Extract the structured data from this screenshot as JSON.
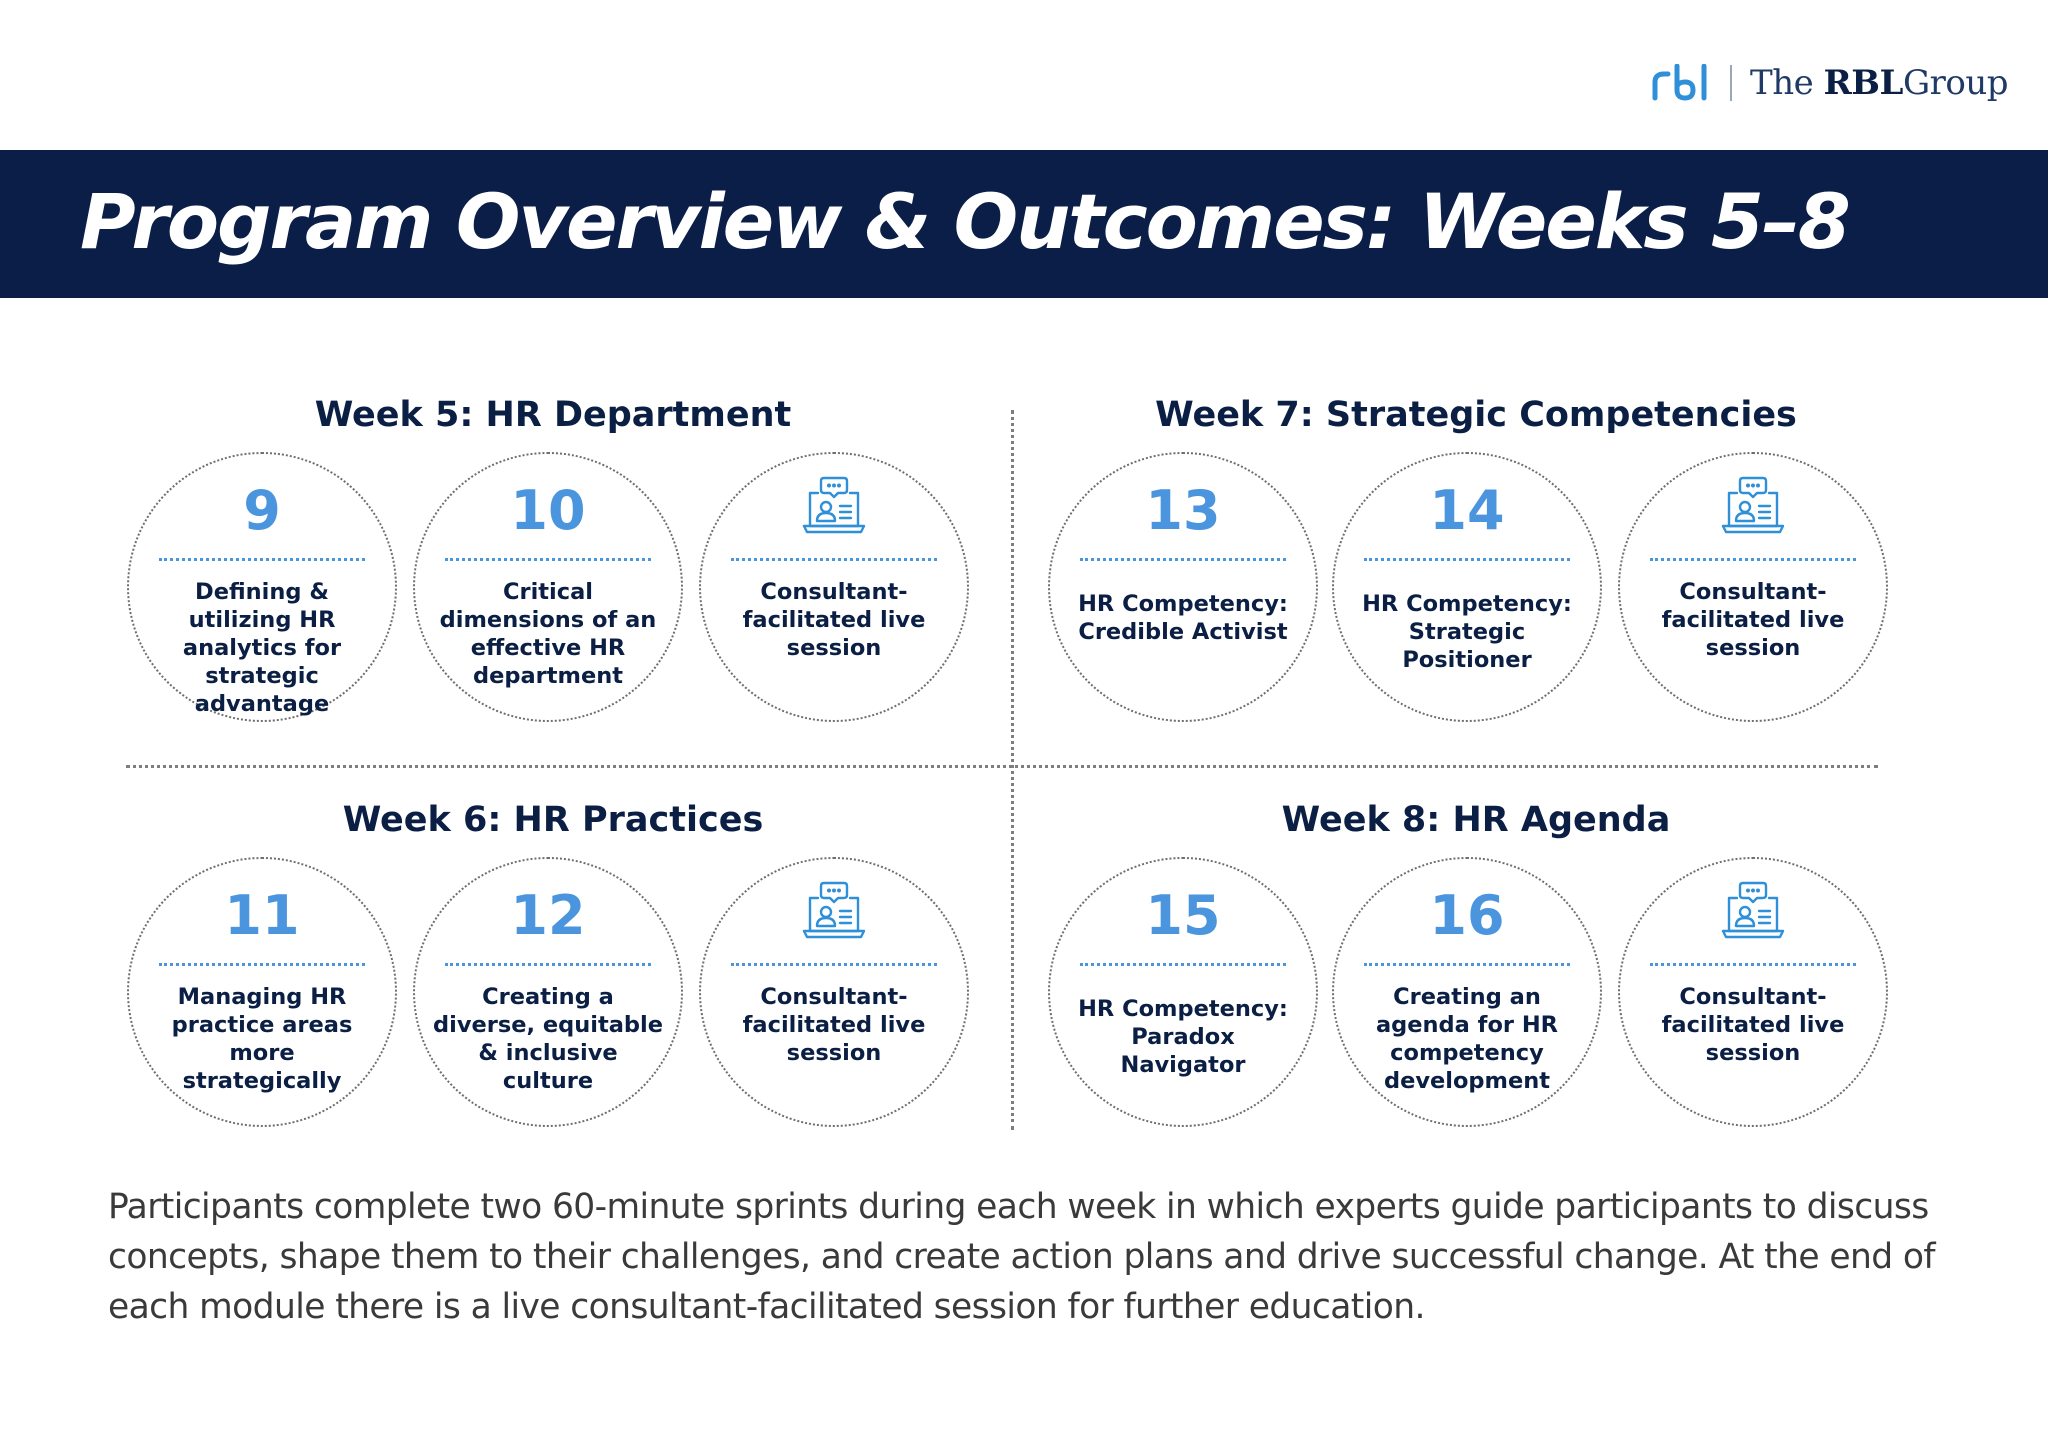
{
  "logo": {
    "mark": "rbl",
    "text_prefix": "The",
    "text_bold": "RBL",
    "text_suffix": "Group",
    "color": "#2f8fd8"
  },
  "banner": {
    "title": "Program Overview & Outcomes: Weeks 5–8",
    "background": "#0b1e47"
  },
  "weeks": [
    {
      "title": "Week 5: HR Department",
      "items": [
        {
          "number": "9",
          "text": "Defining & utilizing HR analytics for strategic advantage"
        },
        {
          "number": "10",
          "text": "Critical dimensions of an effective HR department"
        },
        {
          "icon": "live-session-icon",
          "text": "Consultant-facilitated live session"
        }
      ]
    },
    {
      "title": "Week 7: Strategic Competencies",
      "items": [
        {
          "number": "13",
          "text": "HR Competency: Credible Activist"
        },
        {
          "number": "14",
          "text": "HR Competency: Strategic Positioner"
        },
        {
          "icon": "live-session-icon",
          "text": "Consultant-facilitated live session"
        }
      ]
    },
    {
      "title": "Week 6: HR Practices",
      "items": [
        {
          "number": "11",
          "text": "Managing HR practice areas more strategically"
        },
        {
          "number": "12",
          "text": "Creating a diverse, equitable & inclusive culture"
        },
        {
          "icon": "live-session-icon",
          "text": "Consultant-facilitated live session"
        }
      ]
    },
    {
      "title": "Week 8: HR Agenda",
      "items": [
        {
          "number": "15",
          "text": "HR Competency: Paradox Navigator"
        },
        {
          "number": "16",
          "text": "Creating an agenda for HR competency development"
        },
        {
          "icon": "live-session-icon",
          "text": "Consultant-facilitated live session"
        }
      ]
    }
  ],
  "colors": {
    "accent": "#4a95dd",
    "navy": "#0b1f44"
  },
  "footer": {
    "text": "Participants complete two 60-minute sprints during each week in which experts guide participants to discuss concepts, shape them to their challenges, and create action plans and drive successful change. At the end of each module there is a live consultant-facilitated session for further education."
  }
}
